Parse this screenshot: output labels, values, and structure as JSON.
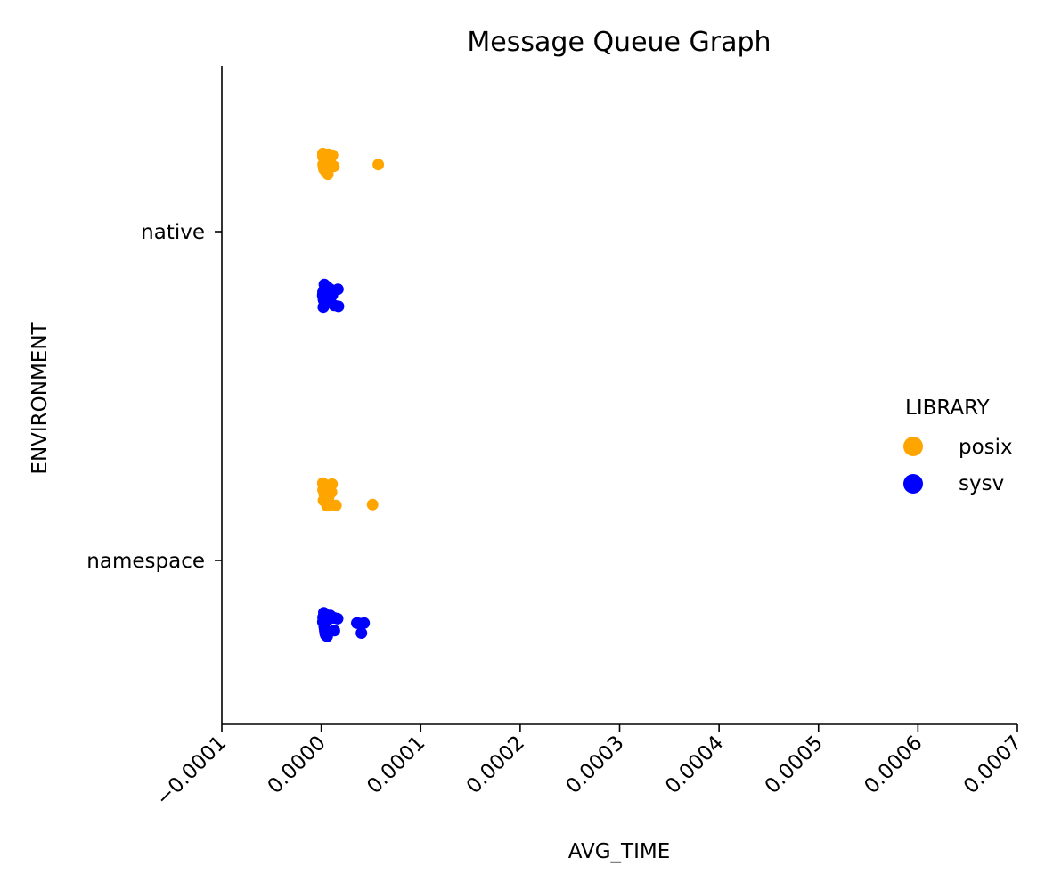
{
  "chart_data": {
    "type": "scatter",
    "title": "Message Queue Graph",
    "xlabel": "AVG_TIME",
    "ylabel": "ENVIRONMENT",
    "xlim": [
      -0.0001,
      0.0007
    ],
    "xticks": [
      "−0.0001",
      "0.0000",
      "0.0001",
      "0.0002",
      "0.0003",
      "0.0004",
      "0.0005",
      "0.0006",
      "0.0007"
    ],
    "categories": [
      "native",
      "namespace"
    ],
    "grid": false,
    "legend": {
      "title": "LIBRARY",
      "placement": "center-right"
    },
    "series": [
      {
        "name": "posix",
        "color": "#FFA500",
        "points": [
          {
            "category": "native",
            "x": 5.73e-05
          },
          {
            "category": "native",
            "x": 1.27e-05
          },
          {
            "category": "native",
            "x": 1.13e-05
          },
          {
            "category": "native",
            "x": 9.3e-06
          },
          {
            "category": "native",
            "x": 8.4e-06
          },
          {
            "category": "native",
            "x": 7.9e-06
          },
          {
            "category": "native",
            "x": 7.2e-06
          },
          {
            "category": "native",
            "x": 6.6e-06
          },
          {
            "category": "native",
            "x": 6.4e-06
          },
          {
            "category": "native",
            "x": 6.3e-06
          },
          {
            "category": "native",
            "x": 6.2e-06
          },
          {
            "category": "native",
            "x": 4.8e-06
          },
          {
            "category": "native",
            "x": 4.5e-06
          },
          {
            "category": "native",
            "x": 3.5e-06
          },
          {
            "category": "native",
            "x": 3.3e-06
          },
          {
            "category": "native",
            "x": 3e-06
          },
          {
            "category": "native",
            "x": 2.7e-06
          },
          {
            "category": "native",
            "x": 2.4e-06
          },
          {
            "category": "native",
            "x": 2.1e-06
          },
          {
            "category": "native",
            "x": 1.9e-06
          },
          {
            "category": "native",
            "x": 1.7e-06
          },
          {
            "category": "native",
            "x": 1.6e-06
          },
          {
            "category": "namespace",
            "x": 5.16e-05
          },
          {
            "category": "namespace",
            "x": 1.48e-05
          },
          {
            "category": "namespace",
            "x": 1.08e-05
          },
          {
            "category": "namespace",
            "x": 1.03e-05
          },
          {
            "category": "namespace",
            "x": 9e-06
          },
          {
            "category": "namespace",
            "x": 8.5e-06
          },
          {
            "category": "namespace",
            "x": 7.8e-06
          },
          {
            "category": "namespace",
            "x": 7.6e-06
          },
          {
            "category": "namespace",
            "x": 7.3e-06
          },
          {
            "category": "namespace",
            "x": 6.5e-06
          },
          {
            "category": "namespace",
            "x": 6.1e-06
          },
          {
            "category": "namespace",
            "x": 5.7e-06
          },
          {
            "category": "namespace",
            "x": 3.8e-06
          },
          {
            "category": "namespace",
            "x": 3.4e-06
          },
          {
            "category": "namespace",
            "x": 3.1e-06
          },
          {
            "category": "namespace",
            "x": 2.8e-06
          },
          {
            "category": "namespace",
            "x": 2.5e-06
          },
          {
            "category": "namespace",
            "x": 2.2e-06
          },
          {
            "category": "namespace",
            "x": 2e-06
          },
          {
            "category": "namespace",
            "x": 1.8e-06
          },
          {
            "category": "namespace",
            "x": 1.6e-06
          }
        ]
      },
      {
        "name": "sysv",
        "color": "#0000FF",
        "points": [
          {
            "category": "native",
            "x": 1.73e-05
          },
          {
            "category": "native",
            "x": 1.67e-05
          },
          {
            "category": "native",
            "x": 1.3e-05
          },
          {
            "category": "native",
            "x": 1.12e-05
          },
          {
            "category": "native",
            "x": 9e-06
          },
          {
            "category": "native",
            "x": 8.6e-06
          },
          {
            "category": "native",
            "x": 8.1e-06
          },
          {
            "category": "native",
            "x": 7.1e-06
          },
          {
            "category": "native",
            "x": 6.2e-06
          },
          {
            "category": "native",
            "x": 6e-06
          },
          {
            "category": "native",
            "x": 5.9e-06
          },
          {
            "category": "native",
            "x": 4.6e-06
          },
          {
            "category": "native",
            "x": 3.7e-06
          },
          {
            "category": "native",
            "x": 3.1e-06
          },
          {
            "category": "native",
            "x": 2.8e-06
          },
          {
            "category": "native",
            "x": 2.5e-06
          },
          {
            "category": "native",
            "x": 2.2e-06
          },
          {
            "category": "native",
            "x": 2e-06
          },
          {
            "category": "native",
            "x": 1.8e-06
          },
          {
            "category": "native",
            "x": 1.6e-06
          },
          {
            "category": "native",
            "x": 1.5e-06
          },
          {
            "category": "namespace",
            "x": 4.31e-05
          },
          {
            "category": "namespace",
            "x": 4.04e-05
          },
          {
            "category": "namespace",
            "x": 3.77e-05
          },
          {
            "category": "namespace",
            "x": 3.57e-05
          },
          {
            "category": "namespace",
            "x": 1.65e-05
          },
          {
            "category": "namespace",
            "x": 1.35e-05
          },
          {
            "category": "namespace",
            "x": 1.32e-05
          },
          {
            "category": "namespace",
            "x": 9e-06
          },
          {
            "category": "namespace",
            "x": 8e-06
          },
          {
            "category": "namespace",
            "x": 6.2e-06
          },
          {
            "category": "namespace",
            "x": 6.1e-06
          },
          {
            "category": "namespace",
            "x": 6e-06
          },
          {
            "category": "namespace",
            "x": 4.6e-06
          },
          {
            "category": "namespace",
            "x": 4e-06
          },
          {
            "category": "namespace",
            "x": 3.6e-06
          },
          {
            "category": "namespace",
            "x": 3.2e-06
          },
          {
            "category": "namespace",
            "x": 2.9e-06
          },
          {
            "category": "namespace",
            "x": 2.6e-06
          },
          {
            "category": "namespace",
            "x": 2.3e-06
          },
          {
            "category": "namespace",
            "x": 2e-06
          },
          {
            "category": "namespace",
            "x": 1.8e-06
          },
          {
            "category": "namespace",
            "x": 1.6e-06
          }
        ]
      }
    ]
  }
}
